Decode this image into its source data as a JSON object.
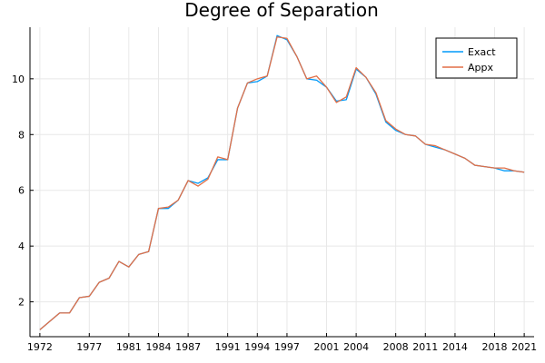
{
  "chart_data": {
    "type": "line",
    "title": "Degree of Separation",
    "xlabel": "",
    "ylabel": "",
    "xlim": [
      1971,
      2022
    ],
    "ylim": [
      0.75,
      11.85
    ],
    "x_ticks": [
      1972,
      1977,
      1981,
      1984,
      1987,
      1991,
      1994,
      1997,
      2001,
      2004,
      2008,
      2011,
      2014,
      2018,
      2021
    ],
    "y_ticks": [
      2,
      4,
      6,
      8,
      10
    ],
    "grid": true,
    "legend_position": "top-right",
    "x": [
      1972,
      1973,
      1974,
      1975,
      1976,
      1977,
      1978,
      1979,
      1980,
      1981,
      1982,
      1983,
      1984,
      1985,
      1986,
      1987,
      1988,
      1989,
      1990,
      1991,
      1992,
      1993,
      1994,
      1995,
      1996,
      1997,
      1998,
      1999,
      2000,
      2001,
      2002,
      2003,
      2004,
      2005,
      2006,
      2007,
      2008,
      2009,
      2010,
      2011,
      2012,
      2013,
      2014,
      2015,
      2016,
      2017,
      2018,
      2019,
      2020,
      2021
    ],
    "series": [
      {
        "name": "Exact",
        "color": "#009AFA",
        "values": [
          1.0,
          1.3,
          1.6,
          1.6,
          2.15,
          2.2,
          2.7,
          2.85,
          3.45,
          3.25,
          3.7,
          3.8,
          5.35,
          5.35,
          5.65,
          6.35,
          6.25,
          6.45,
          7.1,
          7.1,
          8.95,
          9.85,
          9.9,
          10.1,
          11.55,
          11.4,
          10.8,
          10.0,
          9.95,
          9.7,
          9.2,
          9.25,
          10.35,
          10.05,
          9.45,
          8.45,
          8.15,
          8.0,
          7.95,
          7.65,
          7.55,
          7.45,
          7.3,
          7.15,
          6.9,
          6.85,
          6.8,
          6.7,
          6.7,
          6.65
        ]
      },
      {
        "name": "Appx",
        "color": "#E26F46",
        "values": [
          1.0,
          1.3,
          1.6,
          1.6,
          2.15,
          2.2,
          2.7,
          2.85,
          3.45,
          3.25,
          3.7,
          3.8,
          5.35,
          5.4,
          5.65,
          6.35,
          6.15,
          6.4,
          7.2,
          7.1,
          8.95,
          9.85,
          10.0,
          10.1,
          11.5,
          11.45,
          10.8,
          10.0,
          10.1,
          9.7,
          9.15,
          9.35,
          10.4,
          10.05,
          9.5,
          8.5,
          8.2,
          8.0,
          7.95,
          7.65,
          7.6,
          7.45,
          7.3,
          7.15,
          6.9,
          6.85,
          6.8,
          6.8,
          6.7,
          6.65
        ]
      }
    ]
  }
}
